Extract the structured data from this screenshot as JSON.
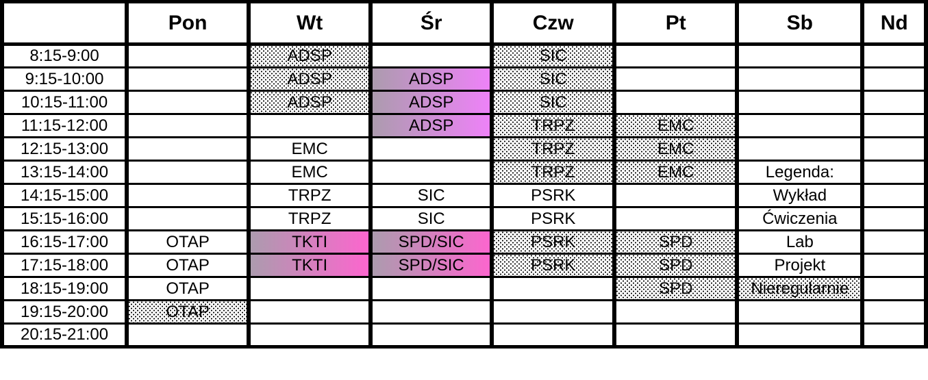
{
  "table": {
    "day_headers": [
      "",
      "Pon",
      "Wt",
      "Śr",
      "Czw",
      "Pt",
      "Sb",
      "Nd"
    ],
    "day_keys": [
      "pon",
      "wt",
      "sr",
      "czw",
      "pt",
      "sb",
      "nd"
    ],
    "rows": [
      {
        "time": "8:15-9:00",
        "cells": [
          {
            "text": "",
            "type": ""
          },
          {
            "text": "ADSP",
            "type": "lab-irregular"
          },
          {
            "text": "",
            "type": ""
          },
          {
            "text": "SIC",
            "type": "lab-irregular"
          },
          {
            "text": "",
            "type": ""
          },
          {
            "text": "",
            "type": ""
          },
          {
            "text": "",
            "type": ""
          }
        ]
      },
      {
        "time": "9:15-10:00",
        "cells": [
          {
            "text": "",
            "type": ""
          },
          {
            "text": "ADSP",
            "type": "lab-irregular"
          },
          {
            "text": "ADSP",
            "type": "wyklad-cwiczenia-gradient"
          },
          {
            "text": "SIC",
            "type": "lab-irregular"
          },
          {
            "text": "",
            "type": ""
          },
          {
            "text": "",
            "type": ""
          },
          {
            "text": "",
            "type": ""
          }
        ]
      },
      {
        "time": "10:15-11:00",
        "cells": [
          {
            "text": "",
            "type": ""
          },
          {
            "text": "ADSP",
            "type": "lab-irregular"
          },
          {
            "text": "ADSP",
            "type": "wyklad-cwiczenia-gradient"
          },
          {
            "text": "SIC",
            "type": "lab-irregular"
          },
          {
            "text": "",
            "type": ""
          },
          {
            "text": "",
            "type": ""
          },
          {
            "text": "",
            "type": ""
          }
        ]
      },
      {
        "time": "11:15-12:00",
        "cells": [
          {
            "text": "",
            "type": ""
          },
          {
            "text": "",
            "type": ""
          },
          {
            "text": "ADSP",
            "type": "wyklad-cwiczenia-gradient"
          },
          {
            "text": "TRPZ",
            "type": "lab-irregular"
          },
          {
            "text": "EMC",
            "type": "lab-irregular"
          },
          {
            "text": "",
            "type": ""
          },
          {
            "text": "",
            "type": ""
          }
        ]
      },
      {
        "time": "12:15-13:00",
        "cells": [
          {
            "text": "",
            "type": ""
          },
          {
            "text": "EMC",
            "type": "wyklad"
          },
          {
            "text": "",
            "type": ""
          },
          {
            "text": "TRPZ",
            "type": "lab-irregular"
          },
          {
            "text": "EMC",
            "type": "lab-irregular"
          },
          {
            "text": "",
            "type": ""
          },
          {
            "text": "",
            "type": ""
          }
        ]
      },
      {
        "time": "13:15-14:00",
        "cells": [
          {
            "text": "",
            "type": ""
          },
          {
            "text": "EMC",
            "type": "wyklad"
          },
          {
            "text": "",
            "type": ""
          },
          {
            "text": "TRPZ",
            "type": "lab-irregular"
          },
          {
            "text": "EMC",
            "type": "lab-irregular"
          },
          {
            "text": "Legenda:",
            "type": "legend-title",
            "name": "legend-title"
          },
          {
            "text": "",
            "type": ""
          }
        ]
      },
      {
        "time": "14:15-15:00",
        "cells": [
          {
            "text": "",
            "type": ""
          },
          {
            "text": "TRPZ",
            "type": "wyklad"
          },
          {
            "text": "SIC",
            "type": "wyklad"
          },
          {
            "text": "PSRK",
            "type": "wyklad"
          },
          {
            "text": "",
            "type": ""
          },
          {
            "text": "Wykład",
            "type": "wyklad",
            "name": "legend-wyklad"
          },
          {
            "text": "",
            "type": ""
          }
        ]
      },
      {
        "time": "15:15-16:00",
        "cells": [
          {
            "text": "",
            "type": ""
          },
          {
            "text": "TRPZ",
            "type": "wyklad"
          },
          {
            "text": "SIC",
            "type": "wyklad"
          },
          {
            "text": "PSRK",
            "type": "wyklad"
          },
          {
            "text": "",
            "type": ""
          },
          {
            "text": "Ćwiczenia",
            "type": "cwiczenia",
            "name": "legend-cwiczenia"
          },
          {
            "text": "",
            "type": ""
          }
        ]
      },
      {
        "time": "16:15-17:00",
        "cells": [
          {
            "text": "OTAP",
            "type": "wyklad"
          },
          {
            "text": "TKTI",
            "type": "wyklad-projekt-gradient"
          },
          {
            "text": "SPD/SIC",
            "type": "wyklad-projekt-gradient"
          },
          {
            "text": "PSRK",
            "type": "cwiczenia-irregular"
          },
          {
            "text": "SPD",
            "type": "lab-irregular"
          },
          {
            "text": "Lab",
            "type": "lab",
            "name": "legend-lab"
          },
          {
            "text": "",
            "type": ""
          }
        ]
      },
      {
        "time": "17:15-18:00",
        "cells": [
          {
            "text": "OTAP",
            "type": "wyklad"
          },
          {
            "text": "TKTI",
            "type": "wyklad-projekt-gradient"
          },
          {
            "text": "SPD/SIC",
            "type": "wyklad-projekt-gradient"
          },
          {
            "text": "PSRK",
            "type": "cwiczenia-irregular"
          },
          {
            "text": "SPD",
            "type": "lab-irregular"
          },
          {
            "text": "Projekt",
            "type": "projekt",
            "name": "legend-projekt"
          },
          {
            "text": "",
            "type": ""
          }
        ]
      },
      {
        "time": "18:15-19:00",
        "cells": [
          {
            "text": "OTAP",
            "type": "projekt"
          },
          {
            "text": "",
            "type": ""
          },
          {
            "text": "",
            "type": ""
          },
          {
            "text": "",
            "type": ""
          },
          {
            "text": "SPD",
            "type": "lab-irregular"
          },
          {
            "text": "Nieregularnie",
            "type": "irregular",
            "name": "legend-nieregularnie"
          },
          {
            "text": "",
            "type": ""
          }
        ]
      },
      {
        "time": "19:15-20:00",
        "cells": [
          {
            "text": "OTAP",
            "type": "projekt-irregular"
          },
          {
            "text": "",
            "type": ""
          },
          {
            "text": "",
            "type": ""
          },
          {
            "text": "",
            "type": ""
          },
          {
            "text": "",
            "type": ""
          },
          {
            "text": "",
            "type": ""
          },
          {
            "text": "",
            "type": ""
          }
        ]
      },
      {
        "time": "20:15-21:00",
        "cells": [
          {
            "text": "",
            "type": ""
          },
          {
            "text": "",
            "type": ""
          },
          {
            "text": "",
            "type": ""
          },
          {
            "text": "",
            "type": ""
          },
          {
            "text": "",
            "type": ""
          },
          {
            "text": "",
            "type": ""
          },
          {
            "text": "",
            "type": ""
          }
        ]
      }
    ]
  },
  "legend": {
    "title": "Legenda:",
    "items": [
      "Wykład",
      "Ćwiczenia",
      "Lab",
      "Projekt",
      "Nieregularnie"
    ]
  },
  "colors": {
    "wyklad": "#AC9BAE",
    "cwiczenia": "#E57CF6",
    "cwiczenia_grad": "#EE82F8",
    "lab": "#9B8CF2",
    "projekt": "#FC66CE",
    "lab_dot": "#ABA2F6",
    "cwiczenia_dot": "#E583F8",
    "projekt_dot": "#FB74D4",
    "grid_line": "#000000",
    "background": "#FFFFFF"
  }
}
